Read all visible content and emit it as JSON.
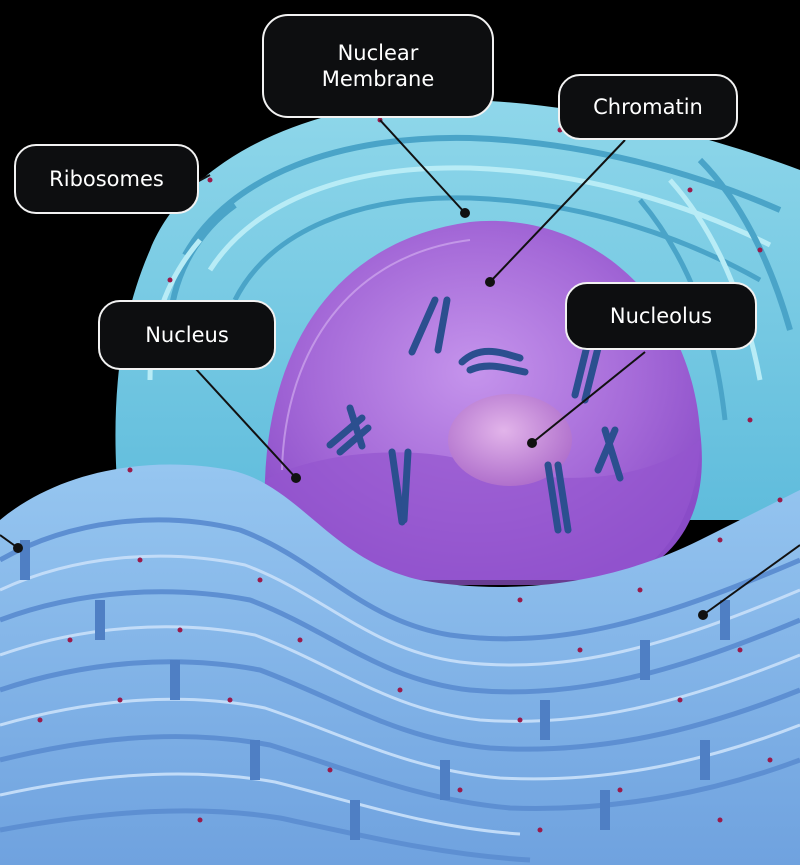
{
  "diagram": {
    "labels": {
      "nuclear_membrane": "Nuclear\nMembrane",
      "chromatin": "Chromatin",
      "ribosomes": "Ribosomes",
      "nucleus": "Nucleus",
      "nucleolus": "Nucleolus"
    },
    "colors": {
      "background": "#000000",
      "er_light": "#8fd7ea",
      "er_mid": "#6cc5df",
      "er_dark": "#4aa4c8",
      "rough_er": "#8ab6e8",
      "nucleus_fill": "#a56ad8",
      "nucleus_shadow": "#8a4cc8",
      "nucleolus": "#c88ad8",
      "chromosome": "#2b4f8f",
      "ribosome_dot": "#9a1a4a",
      "label_bg": "#0d0e10",
      "label_text": "#ffffff",
      "leader_line": "#111111"
    }
  }
}
